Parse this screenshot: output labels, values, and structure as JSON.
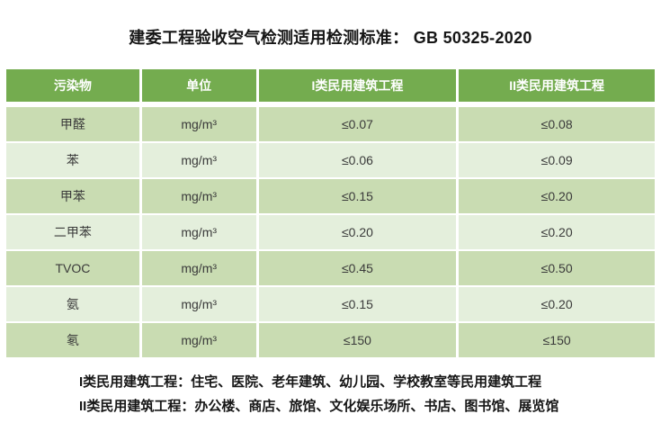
{
  "title": "建委工程验收空气检测适用检测标准： GB 50325-2020",
  "colors": {
    "header_bg": "#74AC4F",
    "header_text": "#FFFFFF",
    "row_band_dark": "#C9DCB2",
    "row_band_light": "#E4EFDC",
    "body_text": "#3A3A3A",
    "page_bg": "#FFFFFF"
  },
  "table": {
    "columns": [
      "污染物",
      "单位",
      "I类民用建筑工程",
      "II类民用建筑工程"
    ],
    "rows": [
      {
        "pollutant": "甲醛",
        "unit": "mg/m³",
        "class1": "≤0.07",
        "class2": "≤0.08"
      },
      {
        "pollutant": "苯",
        "unit": "mg/m³",
        "class1": "≤0.06",
        "class2": "≤0.09"
      },
      {
        "pollutant": "甲苯",
        "unit": "mg/m³",
        "class1": "≤0.15",
        "class2": "≤0.20"
      },
      {
        "pollutant": "二甲苯",
        "unit": "mg/m³",
        "class1": "≤0.20",
        "class2": "≤0.20"
      },
      {
        "pollutant": "TVOC",
        "unit": "mg/m³",
        "class1": "≤0.45",
        "class2": "≤0.50"
      },
      {
        "pollutant": "氨",
        "unit": "mg/m³",
        "class1": "≤0.15",
        "class2": "≤0.20"
      },
      {
        "pollutant": "氡",
        "unit": "mg/m³",
        "class1": "≤150",
        "class2": "≤150"
      }
    ]
  },
  "notes": [
    "I类民用建筑工程：住宅、医院、老年建筑、幼儿园、学校教室等民用建筑工程",
    "II类民用建筑工程：办公楼、商店、旅馆、文化娱乐场所、书店、图书馆、展览馆"
  ]
}
